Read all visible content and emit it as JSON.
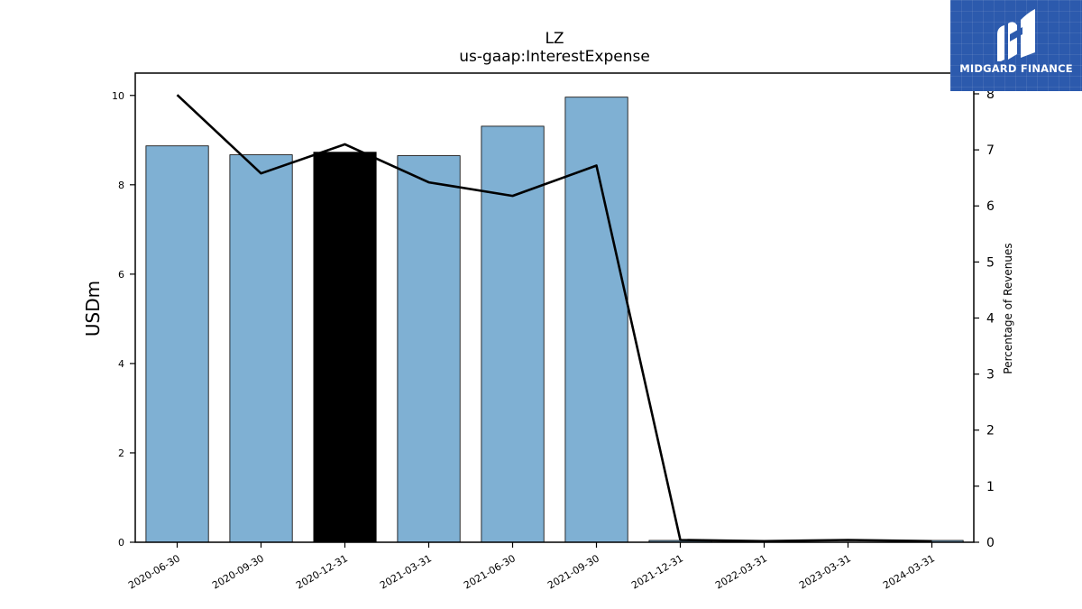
{
  "chart_data": {
    "type": "bar",
    "title": "LZ",
    "subtitle": "us-gaap:InterestExpense",
    "ylabel": "USDm",
    "y2label": "Percentage of Revenues",
    "categories": [
      "2020-06-30",
      "2020-09-30",
      "2020-12-31",
      "2021-03-31",
      "2021-06-30",
      "2021-09-30",
      "2021-12-31",
      "2022-03-31",
      "2023-03-31",
      "2024-03-31"
    ],
    "series": [
      {
        "kind": "bar",
        "axis": "left",
        "values": [
          8.87,
          8.67,
          8.73,
          8.65,
          9.31,
          9.96,
          0.04,
          null,
          null,
          0.04
        ],
        "highlight_index": 2,
        "bar_color": "#7fb0d3",
        "highlight_color": "#000000"
      },
      {
        "kind": "line",
        "axis": "right",
        "values": [
          7.98,
          6.58,
          7.1,
          6.42,
          6.18,
          6.72,
          0.04,
          0.02,
          0.04,
          0.02
        ],
        "color": "#000000"
      }
    ],
    "ylim": [
      0,
      10.5
    ],
    "yticks": [
      "0",
      "2",
      "4",
      "6",
      "8",
      "10"
    ],
    "y2lim": [
      0,
      8.37
    ],
    "y2ticks": [
      "0",
      "1",
      "2",
      "3",
      "4",
      "5",
      "6",
      "7",
      "8"
    ],
    "grid": false,
    "legend": "none"
  },
  "logo": {
    "text": "MIDGARD FINANCE",
    "background": "#2c5aad"
  }
}
